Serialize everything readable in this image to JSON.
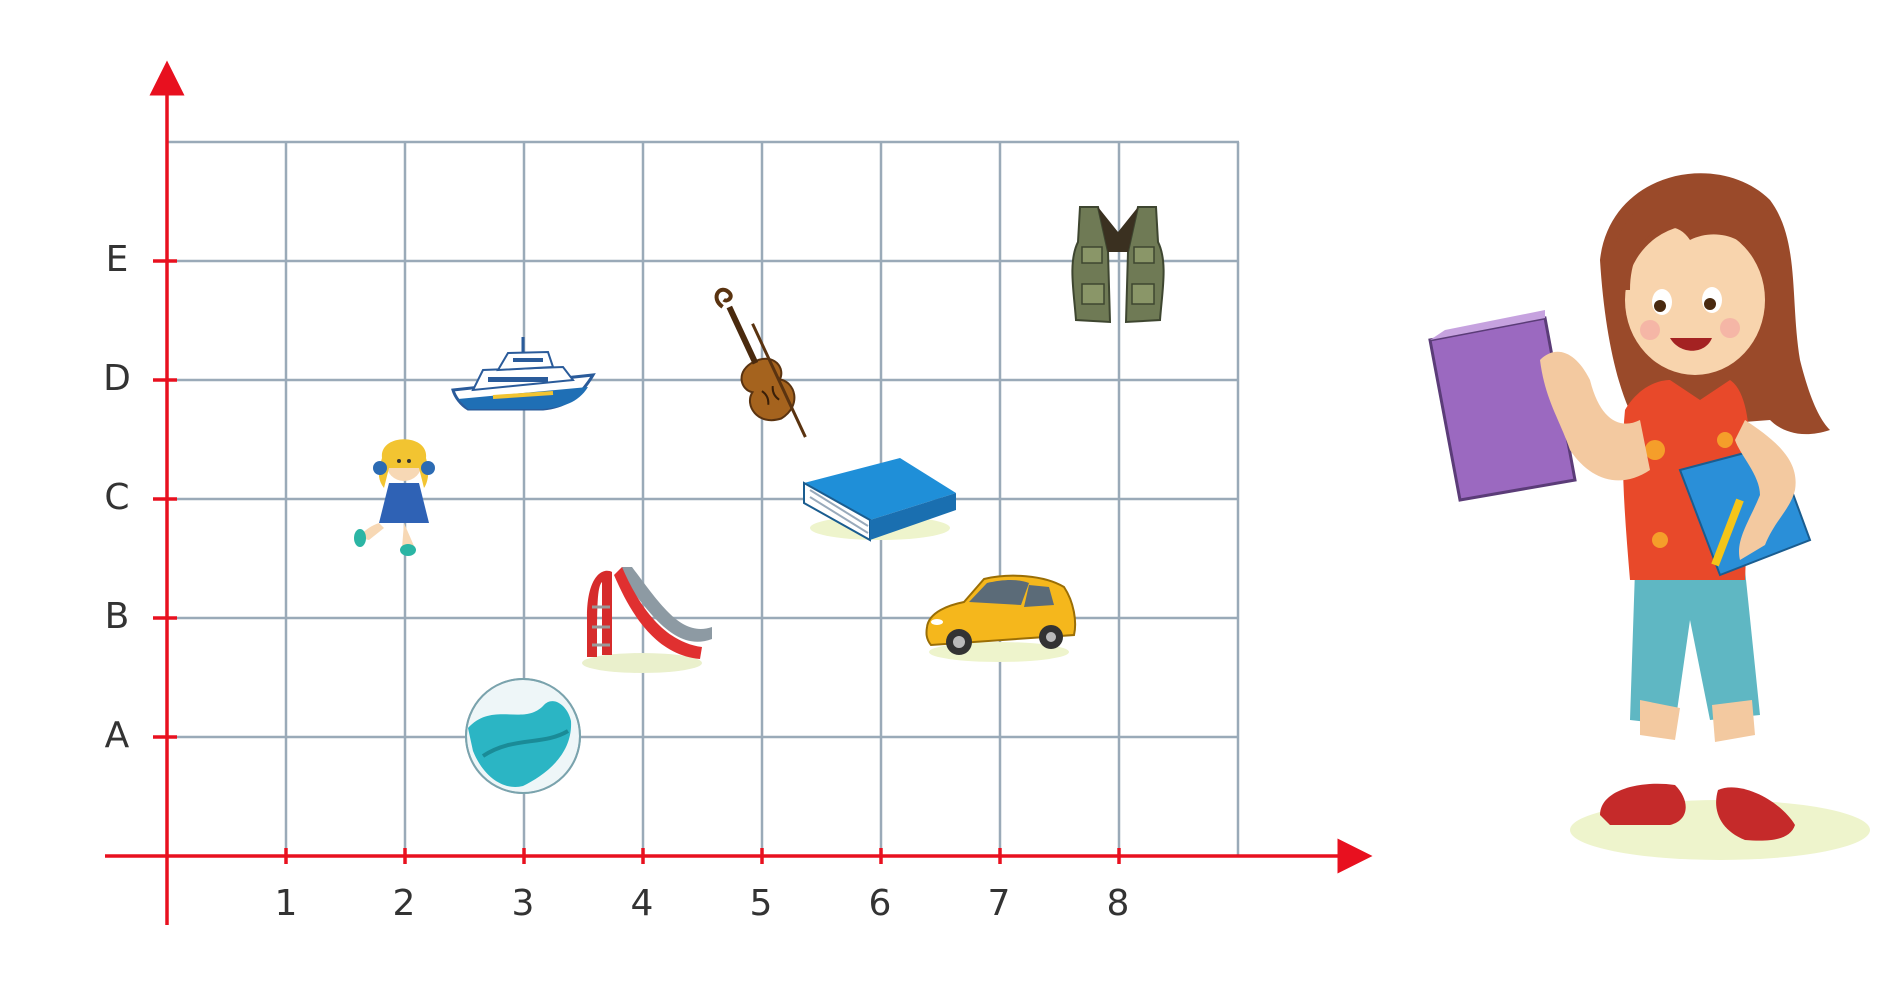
{
  "axis_color": "#e8101f",
  "grid_color": "#9aaab8",
  "x_axis": {
    "tick_labels": [
      "1",
      "2",
      "3",
      "4",
      "5",
      "6",
      "7",
      "8"
    ]
  },
  "y_axis": {
    "tick_labels": [
      "A",
      "B",
      "C",
      "D",
      "E"
    ]
  },
  "objects": [
    {
      "name": "ball",
      "icon": "ball-icon",
      "x": 3,
      "y": "A"
    },
    {
      "name": "slide",
      "icon": "slide-icon",
      "x": 4,
      "y": "B"
    },
    {
      "name": "doll",
      "icon": "doll-icon",
      "x": 2,
      "y": "C"
    },
    {
      "name": "boat",
      "icon": "boat-icon",
      "x": 3,
      "y": "D"
    },
    {
      "name": "violin",
      "icon": "violin-icon",
      "x": 5,
      "y": "D"
    },
    {
      "name": "book",
      "icon": "book-icon",
      "x": 6,
      "y": "C"
    },
    {
      "name": "car",
      "icon": "car-icon",
      "x": 7,
      "y": "B"
    },
    {
      "name": "vest",
      "icon": "vest-icon",
      "x": 8,
      "y": "E"
    }
  ],
  "character": {
    "icon": "girl-with-books-icon"
  }
}
